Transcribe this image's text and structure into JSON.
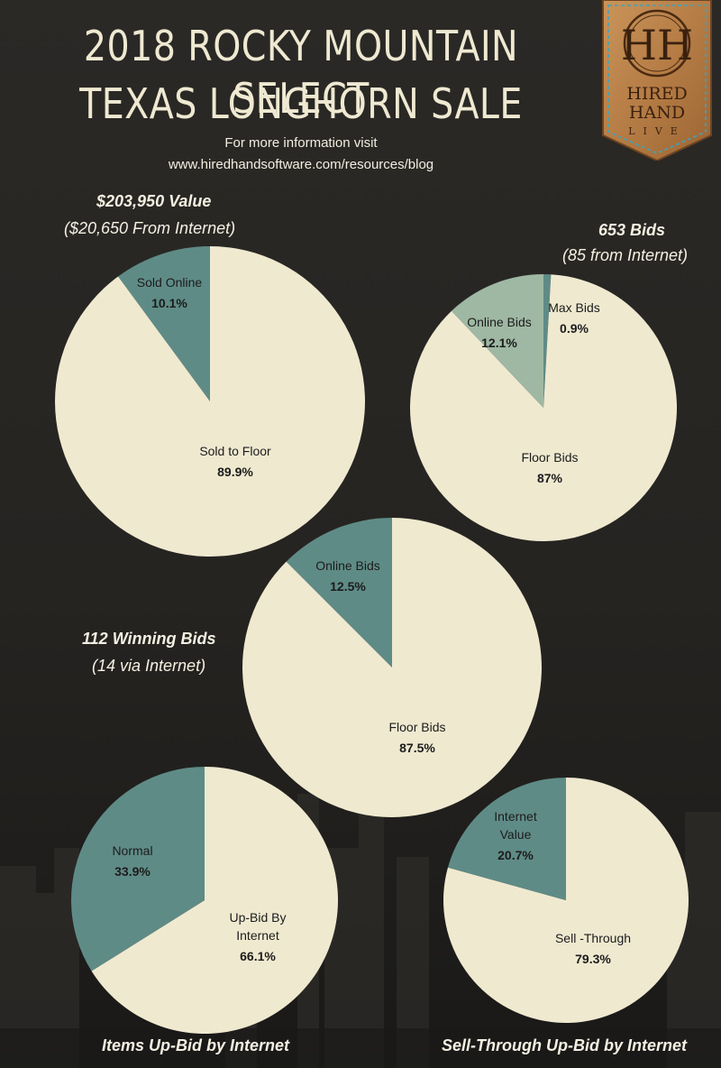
{
  "header": {
    "title_line1": "2018 ROCKY MOUNTAIN SELECT",
    "title_line2": "TEXAS LONGHORN SALE",
    "info_line1": "For more information visit",
    "info_line2": "www.hiredhandsoftware.com/resources/blog"
  },
  "logo": {
    "monogram": "HH",
    "word1": "HIRED",
    "word2": "HAND",
    "word3": "LIVE"
  },
  "captions": {
    "value_title": "$203,950 Value",
    "value_sub": "($20,650 From Internet)",
    "bids_title": "653 Bids",
    "bids_sub": "(85 from Internet)",
    "winning_title": "112 Winning Bids",
    "winning_sub": "(14 via Internet)",
    "upbid_title": "Items Up-Bid by Internet",
    "sellthrough_title": "Sell-Through Up-Bid by Internet"
  },
  "colors": {
    "background": "#262421",
    "cream": "#efe9d0",
    "teal": "#5f8b86",
    "sage": "#9fb8a3",
    "text": "#f4f0e2"
  },
  "chart_data": [
    {
      "type": "pie",
      "title": "$203,950 Value",
      "subtitle": "($20,650 From Internet)",
      "slices": [
        {
          "label": "Sold Online",
          "value": 10.1,
          "display": "10.1%",
          "color": "#5f8b86"
        },
        {
          "label": "Sold to Floor",
          "value": 89.9,
          "display": "89.9%",
          "color": "#efe9d0"
        }
      ]
    },
    {
      "type": "pie",
      "title": "653 Bids",
      "subtitle": "(85 from Internet)",
      "slices": [
        {
          "label": "Max Bids",
          "value": 0.9,
          "display": "0.9%",
          "color": "#5f8b86"
        },
        {
          "label": "Floor Bids",
          "value": 87,
          "display": "87%",
          "color": "#efe9d0"
        },
        {
          "label": "Online Bids",
          "value": 12.1,
          "display": "12.1%",
          "color": "#9fb8a3"
        }
      ]
    },
    {
      "type": "pie",
      "title": "112 Winning Bids",
      "subtitle": "(14 via Internet)",
      "slices": [
        {
          "label": "Online Bids",
          "value": 12.5,
          "display": "12.5%",
          "color": "#5f8b86"
        },
        {
          "label": "Floor Bids",
          "value": 87.5,
          "display": "87.5%",
          "color": "#efe9d0"
        }
      ]
    },
    {
      "type": "pie",
      "title": "Items Up-Bid by Internet",
      "slices": [
        {
          "label": "Up-Bid By Internet",
          "value": 66.1,
          "display": "66.1%",
          "color": "#efe9d0"
        },
        {
          "label": "Normal",
          "value": 33.9,
          "display": "33.9%",
          "color": "#5f8b86"
        }
      ]
    },
    {
      "type": "pie",
      "title": "Sell-Through Up-Bid by Internet",
      "slices": [
        {
          "label": "Sell -Through",
          "value": 79.3,
          "display": "79.3%",
          "color": "#efe9d0"
        },
        {
          "label": "Internet Value",
          "value": 20.7,
          "display": "20.7%",
          "color": "#5f8b86"
        }
      ]
    }
  ]
}
